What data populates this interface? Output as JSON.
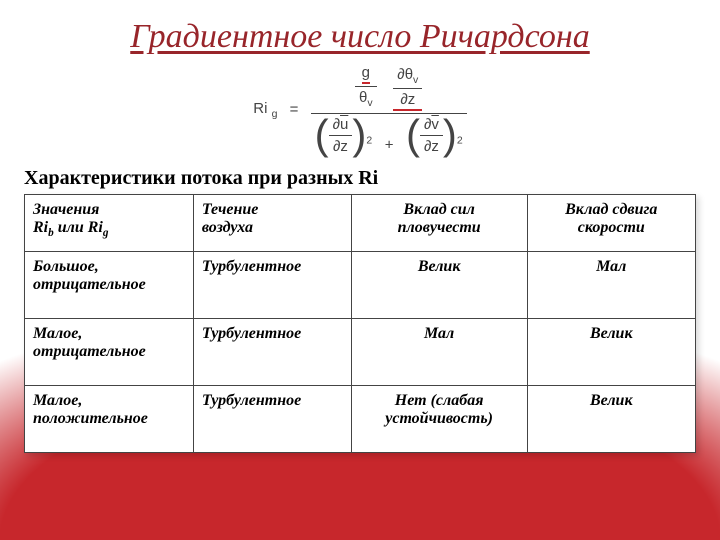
{
  "title": "Градиентное число Ричардсона",
  "table_caption": "Характеристики потока при разных Ri",
  "formula": {
    "lhs_label": "Ri",
    "lhs_sub": "g",
    "g": "g",
    "theta": "θ",
    "thetaV": "v",
    "partial": "∂",
    "u": "u",
    "v": "v",
    "z": "z",
    "exp": "2"
  },
  "table": {
    "header_col1_line1": "Значения",
    "header_col1_line2a": "Ri",
    "header_col1_line2b": " или Ri",
    "sub_b": "b",
    "sub_g": "g",
    "header_col2_line1": "Течение",
    "header_col2_line2": "воздуха",
    "header_col3_line1": "Вклад сил",
    "header_col3_line2": "пловучести",
    "header_col4_line1": "Вклад сдвига",
    "header_col4_line2": "скорости",
    "rows": [
      {
        "c1_line1": "Большое,",
        "c1_line2": "отрицательное",
        "c2": "Турбулентное",
        "c3": "Велик",
        "c4": "Мал"
      },
      {
        "c1_line1": "Малое,",
        "c1_line2": "отрицательное",
        "c2": "Турбулентное",
        "c3": "Мал",
        "c4": "Велик"
      },
      {
        "c1_line1": "Малое,",
        "c1_line2": "положительное",
        "c2": "Турбулентное",
        "c3_line1": "Нет (слабая",
        "c3_line2": "устойчивость)",
        "c4": "Велик"
      }
    ],
    "styling": {
      "background_color": "#ffffff",
      "border_color": "#444444",
      "title_color": "#98252a",
      "accent_gradient": "#c7272c",
      "font_family": "Times New Roman",
      "title_fontsize": 34,
      "caption_fontsize": 20,
      "cell_fontsize": 16
    }
  }
}
